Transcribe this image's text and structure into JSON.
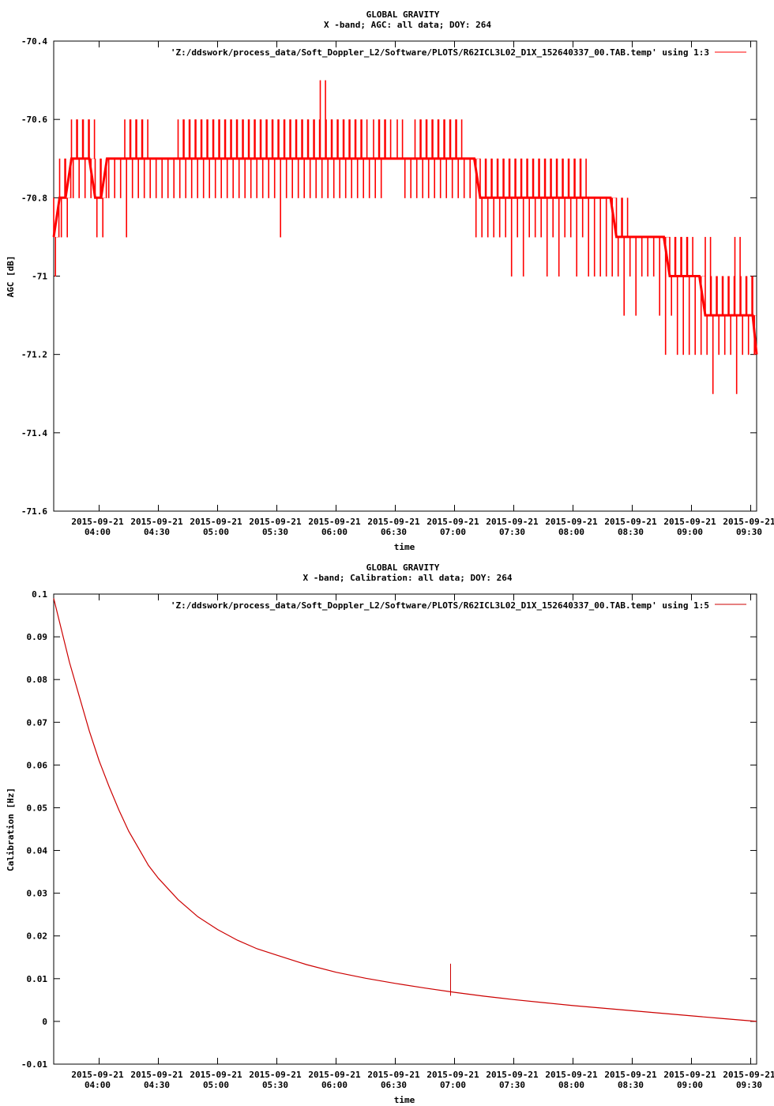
{
  "chart_data": [
    {
      "type": "line",
      "title": "GLOBAL GRAVITY",
      "subtitle": "X -band; AGC: all data; DOY: 264",
      "xlabel": "time",
      "ylabel": "AGC [dB]",
      "ylim": [
        -71.6,
        -70.4
      ],
      "y_ticks": [
        "-70.4",
        "-70.6",
        "-70.8",
        "-71",
        "-71.2",
        "-71.4",
        "-71.6"
      ],
      "y_tick_values": [
        -70.4,
        -70.6,
        -70.8,
        -71.0,
        -71.2,
        -71.4,
        -71.6
      ],
      "x_tick_dates": [
        "2015-09-21",
        "2015-09-21",
        "2015-09-21",
        "2015-09-21",
        "2015-09-21",
        "2015-09-21",
        "2015-09-21",
        "2015-09-21",
        "2015-09-21",
        "2015-09-21",
        "2015-09-21",
        "2015-09-21"
      ],
      "x_tick_times": [
        "04:00",
        "04:30",
        "05:00",
        "05:30",
        "06:00",
        "06:30",
        "07:00",
        "07:30",
        "08:00",
        "08:30",
        "09:00",
        "09:30"
      ],
      "xlim": [
        "2015-09-21 03:37",
        "2015-09-21 09:33"
      ],
      "color": "#ff0000",
      "grid": false,
      "legend_position": "top-right",
      "series": [
        {
          "name": "'Z:/ddswork/process_data/Soft_Doppler_L2/Software/PLOTS/R62ICL3L02_D1X_152640337_00.TAB.temp' using 1:3",
          "x": [
            "03:37",
            "03:40",
            "03:43",
            "03:46",
            "03:49",
            "03:52",
            "03:55",
            "03:58",
            "04:01",
            "04:04",
            "04:07",
            "04:10",
            "04:13",
            "04:16",
            "04:19",
            "04:22",
            "04:25",
            "04:28",
            "04:31",
            "04:34",
            "04:37",
            "04:40",
            "04:43",
            "04:46",
            "04:49",
            "04:52",
            "04:55",
            "04:58",
            "05:01",
            "05:04",
            "05:07",
            "05:10",
            "05:13",
            "05:16",
            "05:19",
            "05:22",
            "05:25",
            "05:28",
            "05:31",
            "05:34",
            "05:37",
            "05:40",
            "05:43",
            "05:46",
            "05:49",
            "05:52",
            "05:55",
            "05:58",
            "06:01",
            "06:04",
            "06:07",
            "06:10",
            "06:13",
            "06:16",
            "06:19",
            "06:22",
            "06:25",
            "06:28",
            "06:31",
            "06:34",
            "06:37",
            "06:40",
            "06:43",
            "06:46",
            "06:49",
            "06:52",
            "06:55",
            "06:58",
            "07:01",
            "07:04",
            "07:07",
            "07:10",
            "07:13",
            "07:16",
            "07:19",
            "07:22",
            "07:25",
            "07:28",
            "07:31",
            "07:34",
            "07:37",
            "07:40",
            "07:43",
            "07:46",
            "07:49",
            "07:52",
            "07:55",
            "07:58",
            "08:01",
            "08:04",
            "08:07",
            "08:10",
            "08:13",
            "08:16",
            "08:19",
            "08:22",
            "08:25",
            "08:28",
            "08:31",
            "08:34",
            "08:37",
            "08:40",
            "08:43",
            "08:46",
            "08:49",
            "08:52",
            "08:55",
            "08:58",
            "09:01",
            "09:04",
            "09:07",
            "09:10",
            "09:13",
            "09:16",
            "09:19",
            "09:22",
            "09:25",
            "09:28",
            "09:31",
            "09:33"
          ],
          "y": [
            -70.9,
            -70.8,
            -70.8,
            -70.7,
            -70.7,
            -70.7,
            -70.7,
            -70.8,
            -70.8,
            -70.7,
            -70.7,
            -70.7,
            -70.7,
            -70.7,
            -70.7,
            -70.7,
            -70.7,
            -70.7,
            -70.7,
            -70.7,
            -70.7,
            -70.7,
            -70.7,
            -70.7,
            -70.7,
            -70.7,
            -70.7,
            -70.7,
            -70.7,
            -70.7,
            -70.7,
            -70.7,
            -70.7,
            -70.7,
            -70.7,
            -70.7,
            -70.7,
            -70.7,
            -70.7,
            -70.7,
            -70.7,
            -70.7,
            -70.7,
            -70.7,
            -70.7,
            -70.7,
            -70.7,
            -70.7,
            -70.7,
            -70.7,
            -70.7,
            -70.7,
            -70.7,
            -70.7,
            -70.7,
            -70.7,
            -70.7,
            -70.7,
            -70.7,
            -70.7,
            -70.7,
            -70.7,
            -70.7,
            -70.7,
            -70.7,
            -70.7,
            -70.7,
            -70.7,
            -70.7,
            -70.7,
            -70.7,
            -70.7,
            -70.8,
            -70.8,
            -70.8,
            -70.8,
            -70.8,
            -70.8,
            -70.8,
            -70.8,
            -70.8,
            -70.8,
            -70.8,
            -70.8,
            -70.8,
            -70.8,
            -70.8,
            -70.8,
            -70.8,
            -70.8,
            -70.8,
            -70.8,
            -70.8,
            -70.8,
            -70.8,
            -70.9,
            -70.9,
            -70.9,
            -70.9,
            -70.9,
            -70.9,
            -70.9,
            -70.9,
            -70.9,
            -71.0,
            -71.0,
            -71.0,
            -71.0,
            -71.0,
            -71.0,
            -71.1,
            -71.1,
            -71.1,
            -71.1,
            -71.1,
            -71.1,
            -71.1,
            -71.1,
            -71.1,
            -71.2
          ],
          "band_low": [
            -71.0,
            -70.9,
            -70.9,
            -70.8,
            -70.8,
            -70.8,
            -70.8,
            -70.9,
            -70.9,
            -70.8,
            -70.8,
            -70.8,
            -70.9,
            -70.8,
            -70.8,
            -70.8,
            -70.8,
            -70.8,
            -70.8,
            -70.8,
            -70.8,
            -70.8,
            -70.8,
            -70.8,
            -70.8,
            -70.8,
            -70.8,
            -70.8,
            -70.8,
            -70.8,
            -70.8,
            -70.8,
            -70.8,
            -70.8,
            -70.8,
            -70.8,
            -70.8,
            -70.8,
            -70.9,
            -70.8,
            -70.8,
            -70.8,
            -70.8,
            -70.8,
            -70.8,
            -70.8,
            -70.8,
            -70.8,
            -70.8,
            -70.8,
            -70.8,
            -70.8,
            -70.8,
            -70.8,
            -70.8,
            -70.8,
            -70.7,
            -70.7,
            -70.7,
            -70.8,
            -70.8,
            -70.8,
            -70.8,
            -70.8,
            -70.8,
            -70.8,
            -70.8,
            -70.8,
            -70.8,
            -70.8,
            -70.8,
            -70.9,
            -70.9,
            -70.9,
            -70.9,
            -70.9,
            -70.9,
            -71.0,
            -70.9,
            -71.0,
            -70.9,
            -70.9,
            -70.9,
            -71.0,
            -70.9,
            -71.0,
            -70.9,
            -70.9,
            -71.0,
            -70.9,
            -71.0,
            -71.0,
            -71.0,
            -71.0,
            -71.0,
            -71.0,
            -71.1,
            -71.0,
            -71.1,
            -71.0,
            -71.0,
            -71.0,
            -71.1,
            -71.2,
            -71.1,
            -71.2,
            -71.2,
            -71.2,
            -71.2,
            -71.2,
            -71.2,
            -71.3,
            -71.2,
            -71.2,
            -71.2,
            -71.3,
            -71.2,
            -71.2,
            -71.2,
            -71.3
          ],
          "band_high": [
            -70.8,
            -70.7,
            -70.7,
            -70.6,
            -70.6,
            -70.6,
            -70.6,
            -70.7,
            -70.7,
            -70.7,
            -70.7,
            -70.7,
            -70.6,
            -70.6,
            -70.6,
            -70.6,
            -70.7,
            -70.7,
            -70.7,
            -70.7,
            -70.7,
            -70.6,
            -70.6,
            -70.6,
            -70.6,
            -70.6,
            -70.6,
            -70.6,
            -70.6,
            -70.6,
            -70.6,
            -70.6,
            -70.6,
            -70.6,
            -70.6,
            -70.6,
            -70.6,
            -70.6,
            -70.6,
            -70.6,
            -70.6,
            -70.6,
            -70.6,
            -70.6,
            -70.6,
            -70.5,
            -70.6,
            -70.6,
            -70.6,
            -70.6,
            -70.6,
            -70.6,
            -70.6,
            -70.7,
            -70.6,
            -70.6,
            -70.6,
            -70.7,
            -70.6,
            -70.7,
            -70.7,
            -70.6,
            -70.6,
            -70.6,
            -70.6,
            -70.6,
            -70.6,
            -70.6,
            -70.6,
            -70.7,
            -70.7,
            -70.7,
            -70.7,
            -70.7,
            -70.7,
            -70.7,
            -70.7,
            -70.7,
            -70.7,
            -70.7,
            -70.7,
            -70.7,
            -70.7,
            -70.7,
            -70.7,
            -70.7,
            -70.7,
            -70.7,
            -70.7,
            -70.7,
            -70.8,
            -70.8,
            -70.8,
            -70.8,
            -70.8,
            -70.8,
            -70.8,
            -70.9,
            -70.9,
            -70.9,
            -70.9,
            -70.9,
            -70.9,
            -70.9,
            -70.9,
            -70.9,
            -70.9,
            -70.9,
            -71.0,
            -71.0,
            -70.9,
            -71.0,
            -71.0,
            -71.0,
            -71.0,
            -70.9,
            -71.0,
            -71.0,
            -71.0,
            -71.0
          ]
        }
      ]
    },
    {
      "type": "line",
      "title": "GLOBAL GRAVITY",
      "subtitle": "X -band; Calibration: all data; DOY: 264",
      "xlabel": "time",
      "ylabel": "Calibration [Hz]",
      "ylim": [
        -0.01,
        0.1
      ],
      "y_ticks": [
        "0.1",
        "0.09",
        "0.08",
        "0.07",
        "0.06",
        "0.05",
        "0.04",
        "0.03",
        "0.02",
        "0.01",
        "0",
        "-0.01"
      ],
      "y_tick_values": [
        0.1,
        0.09,
        0.08,
        0.07,
        0.06,
        0.05,
        0.04,
        0.03,
        0.02,
        0.01,
        0.0,
        -0.01
      ],
      "x_tick_dates": [
        "2015-09-21",
        "2015-09-21",
        "2015-09-21",
        "2015-09-21",
        "2015-09-21",
        "2015-09-21",
        "2015-09-21",
        "2015-09-21",
        "2015-09-21",
        "2015-09-21",
        "2015-09-21",
        "2015-09-21"
      ],
      "x_tick_times": [
        "04:00",
        "04:30",
        "05:00",
        "05:30",
        "06:00",
        "06:30",
        "07:00",
        "07:30",
        "08:00",
        "08:30",
        "09:00",
        "09:30"
      ],
      "xlim": [
        "2015-09-21 03:37",
        "2015-09-21 09:33"
      ],
      "color": "#cc0000",
      "grid": false,
      "legend_position": "top-right",
      "annotations": [
        {
          "x": "06:58",
          "y_low": 0.006,
          "y_high": 0.0135
        }
      ],
      "series": [
        {
          "name": "'Z:/ddswork/process_data/Soft_Doppler_L2/Software/PLOTS/R62ICL3L02_D1X_152640337_00.TAB.temp' using 1:5",
          "x": [
            "03:37",
            "03:45",
            "03:50",
            "03:55",
            "04:00",
            "04:05",
            "04:10",
            "04:15",
            "04:20",
            "04:25",
            "04:30",
            "04:40",
            "04:50",
            "05:00",
            "05:10",
            "05:20",
            "05:30",
            "05:45",
            "06:00",
            "06:15",
            "06:30",
            "06:45",
            "07:00",
            "07:15",
            "07:30",
            "07:45",
            "08:00",
            "08:15",
            "08:30",
            "08:45",
            "09:00",
            "09:15",
            "09:33"
          ],
          "y": [
            0.099,
            0.084,
            0.076,
            0.068,
            0.061,
            0.055,
            0.0495,
            0.0445,
            0.0405,
            0.0365,
            0.0335,
            0.0285,
            0.0245,
            0.0215,
            0.019,
            0.017,
            0.0155,
            0.0133,
            0.0115,
            0.0101,
            0.0089,
            0.0078,
            0.0068,
            0.0059,
            0.0051,
            0.0044,
            0.0037,
            0.0031,
            0.0025,
            0.0019,
            0.0013,
            0.0007,
            0.0
          ]
        }
      ]
    }
  ]
}
